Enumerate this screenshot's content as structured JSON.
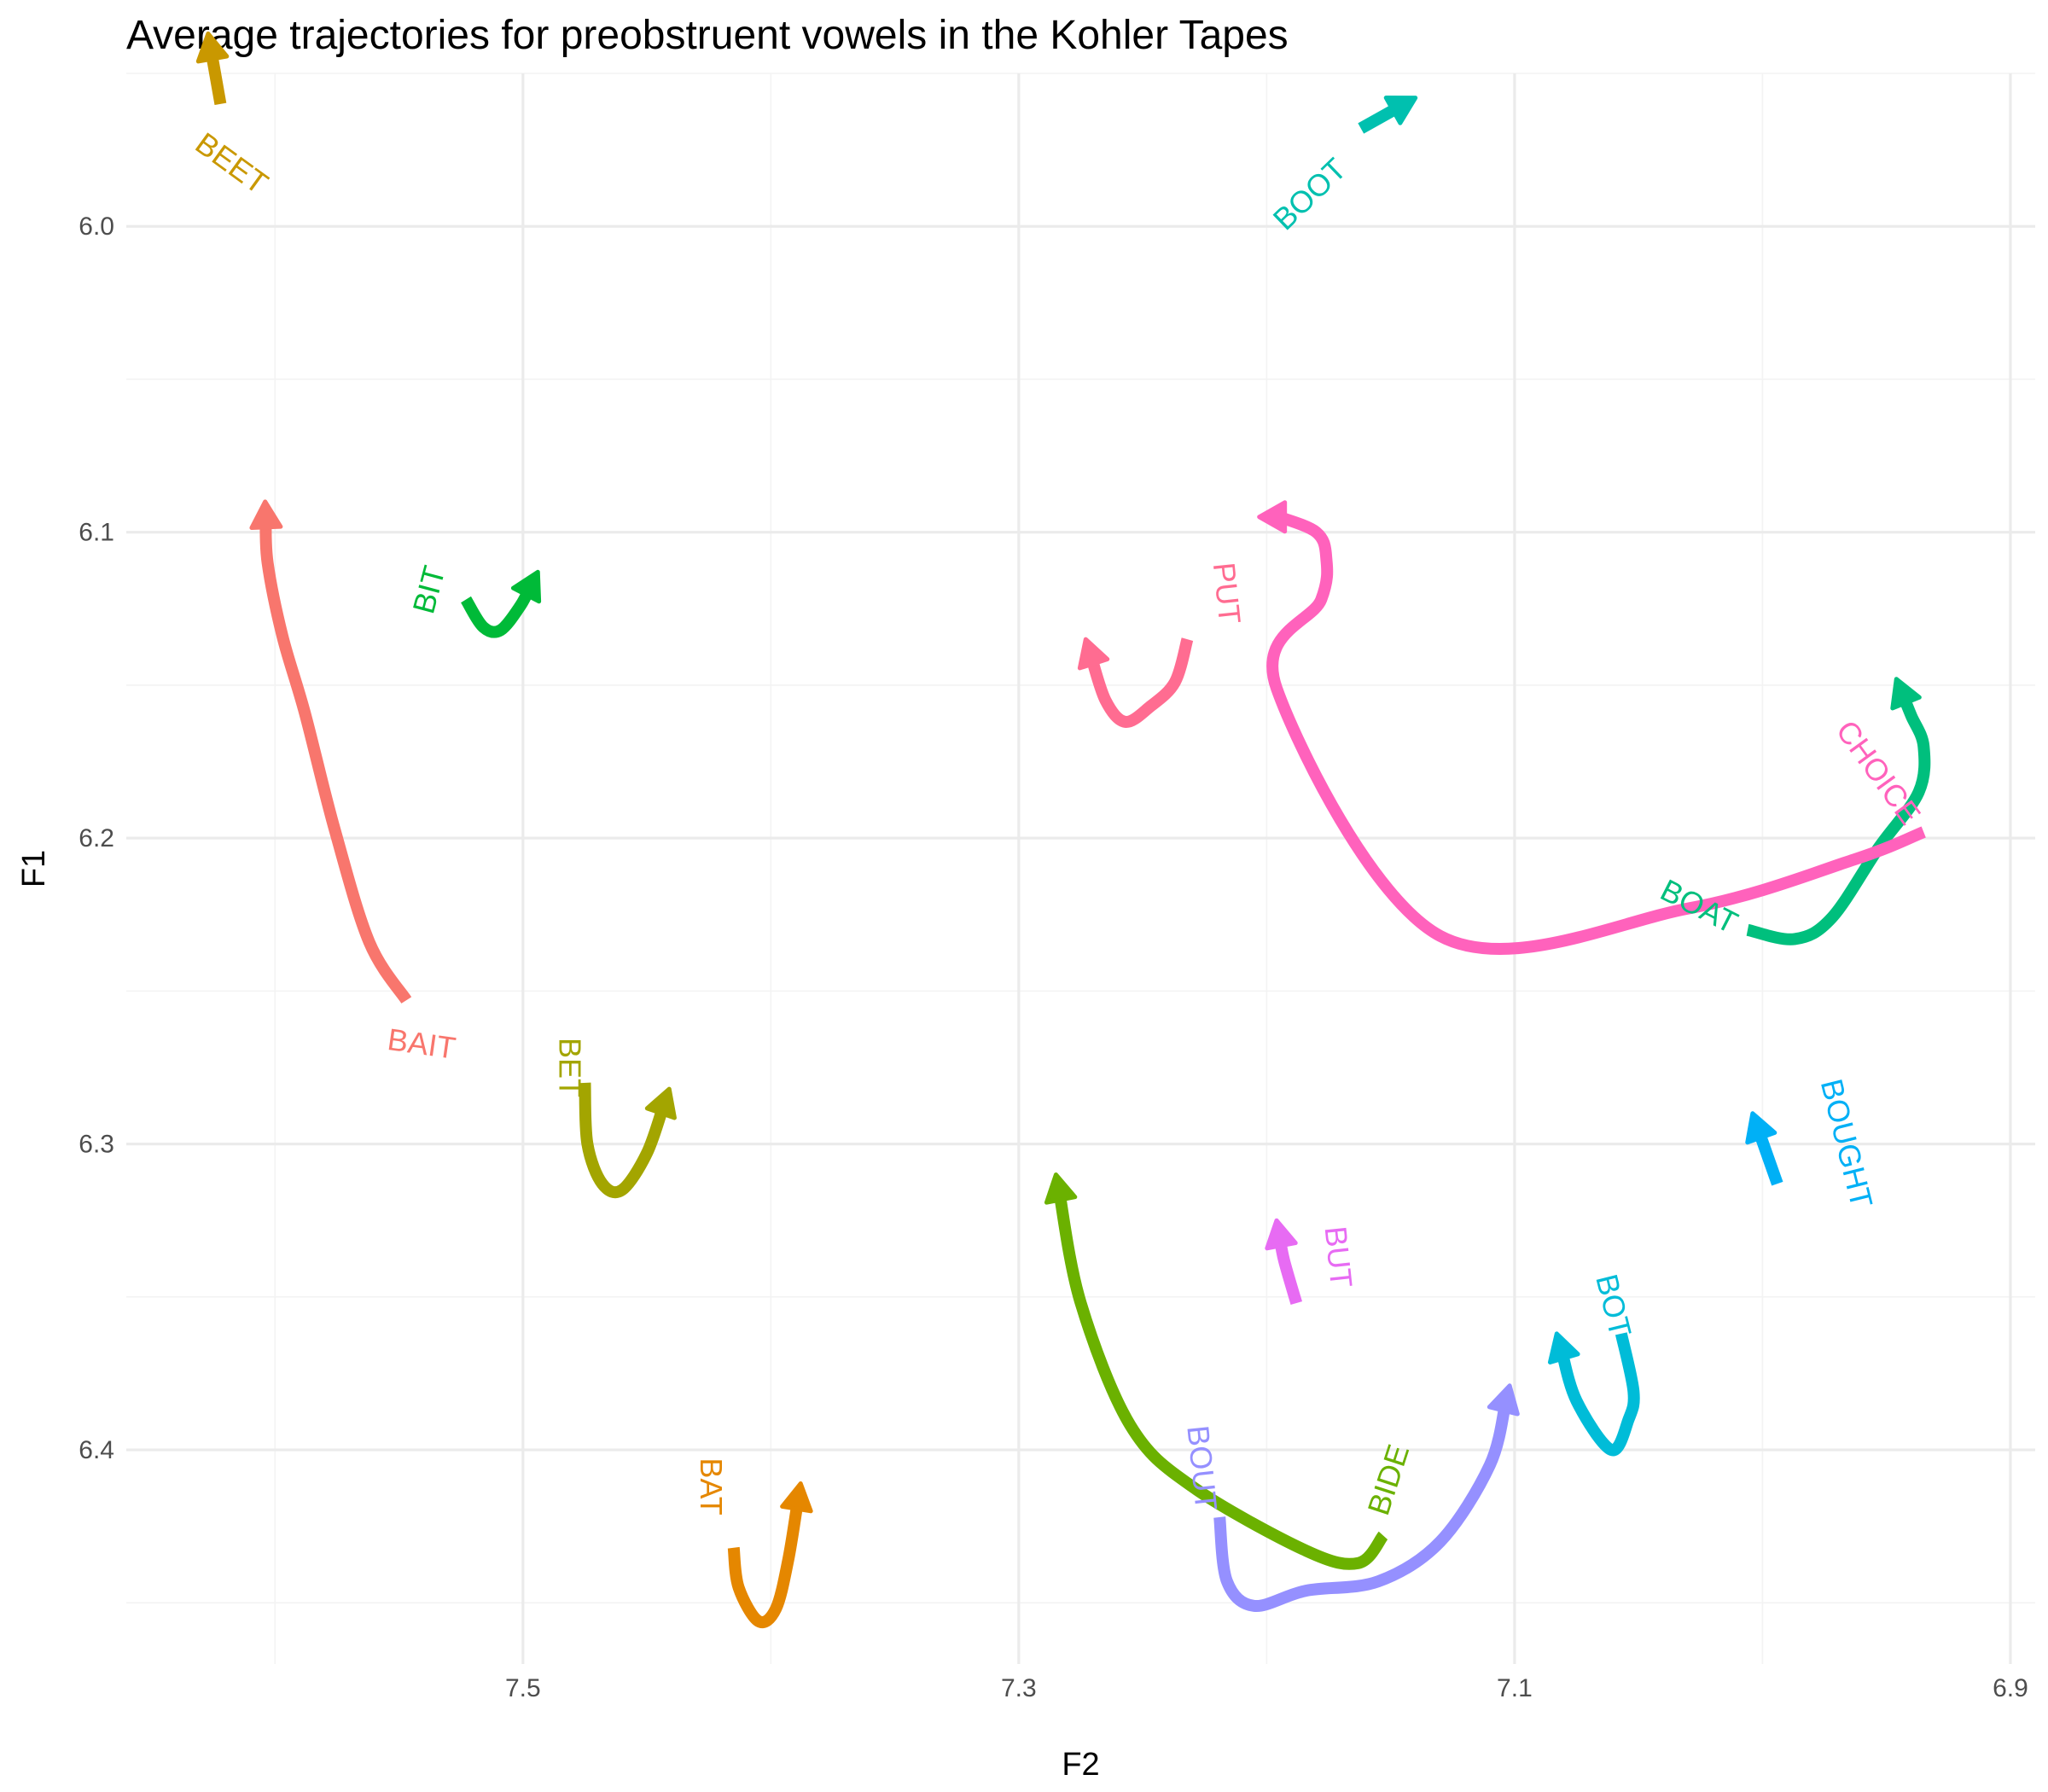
{
  "chart_data": {
    "type": "line",
    "title": "Average trajectories for preobstruent vowels in the Kohler Tapes",
    "xlabel": "F2",
    "ylabel": "F1",
    "x_reversed": true,
    "y_reversed": true,
    "xlim": [
      7.66,
      6.89
    ],
    "ylim": [
      5.95,
      6.47
    ],
    "x_ticks": [
      7.5,
      7.3,
      7.1,
      6.9
    ],
    "x_tick_labels": [
      "7.5",
      "7.3",
      "7.1",
      "6.9"
    ],
    "y_ticks": [
      6.0,
      6.1,
      6.2,
      6.3,
      6.4
    ],
    "y_tick_labels": [
      "6.0",
      "6.1",
      "6.2",
      "6.3",
      "6.4"
    ],
    "grid": true,
    "series": [
      {
        "name": "BAIT",
        "color": "#F8766D",
        "x": [
          7.547,
          7.562,
          7.576,
          7.588,
          7.597,
          7.603,
          7.604
        ],
        "y": [
          6.253,
          6.234,
          6.197,
          6.159,
          6.134,
          6.11,
          6.09
        ]
      },
      {
        "name": "BAT",
        "color": "#E58700",
        "x": [
          7.415,
          7.413,
          7.405,
          7.398,
          7.393,
          7.388
        ],
        "y": [
          6.432,
          6.445,
          6.456,
          6.452,
          6.436,
          6.411
        ]
      },
      {
        "name": "BEET",
        "color": "#C99800",
        "x": [
          7.622,
          7.627
        ],
        "y": [
          5.96,
          5.937
        ]
      },
      {
        "name": "BET",
        "color": "#A3A500",
        "x": [
          7.475,
          7.474,
          7.468,
          7.46,
          7.45,
          7.441
        ],
        "y": [
          6.28,
          6.3,
          6.313,
          6.315,
          6.303,
          6.282
        ]
      },
      {
        "name": "BIDE",
        "color": "#6BB100",
        "x": [
          7.153,
          7.163,
          7.184,
          7.23,
          7.255,
          7.275,
          7.285
        ],
        "y": [
          6.428,
          6.437,
          6.433,
          6.412,
          6.392,
          6.352,
          6.31
        ]
      },
      {
        "name": "BIT",
        "color": "#00BA38",
        "x": [
          7.523,
          7.516,
          7.509,
          7.501,
          7.494
        ],
        "y": [
          6.122,
          6.131,
          6.132,
          6.124,
          6.113
        ]
      },
      {
        "name": "BOAT",
        "color": "#00BF7D",
        "x": [
          7.006,
          6.987,
          6.972,
          6.953,
          6.937,
          6.935,
          6.94,
          6.946
        ],
        "y": [
          6.23,
          6.233,
          6.226,
          6.203,
          6.185,
          6.17,
          6.16,
          6.148
        ]
      },
      {
        "name": "BOOT",
        "color": "#00C0AF",
        "x": [
          7.162,
          7.14
        ],
        "y": [
          5.968,
          5.958
        ]
      },
      {
        "name": "BOT",
        "color": "#00BCD8",
        "x": [
          7.057,
          7.052,
          7.054,
          7.061,
          7.075,
          7.083
        ],
        "y": [
          6.362,
          6.381,
          6.39,
          6.4,
          6.384,
          6.362
        ]
      },
      {
        "name": "BOUGHT",
        "color": "#00B0F6",
        "x": [
          6.994,
          7.004
        ],
        "y": [
          6.313,
          6.29
        ]
      },
      {
        "name": "BOUT",
        "color": "#9590FF",
        "x": [
          7.219,
          7.216,
          7.205,
          7.184,
          7.155,
          7.13,
          7.11,
          7.102
        ],
        "y": [
          6.422,
          6.443,
          6.451,
          6.446,
          6.443,
          6.43,
          6.405,
          6.379
        ]
      },
      {
        "name": "BUT",
        "color": "#E76BF3",
        "x": [
          7.188,
          7.193,
          7.196
        ],
        "y": [
          6.352,
          6.338,
          6.325
        ]
      },
      {
        "name": "CHOICE",
        "color": "#FF62BC",
        "x": [
          6.935,
          6.963,
          7.03,
          7.13,
          7.196,
          7.178,
          7.176,
          7.18,
          7.195,
          7.203
        ],
        "y": [
          6.198,
          6.207,
          6.223,
          6.232,
          6.151,
          6.122,
          6.108,
          6.1,
          6.095,
          6.095
        ]
      },
      {
        "name": "PUT",
        "color": "#FF6C91",
        "x": [
          7.232,
          7.237,
          7.247,
          7.257,
          7.265,
          7.273
        ],
        "y": [
          6.135,
          6.149,
          6.157,
          6.162,
          6.155,
          6.135
        ]
      }
    ],
    "labels": [
      {
        "text": "BAIT",
        "series": "BAIT",
        "x": 7.541,
        "y": 6.268,
        "angle": 8
      },
      {
        "text": "BAT",
        "series": "BAT",
        "x": 7.425,
        "y": 6.412,
        "angle": 90
      },
      {
        "text": "BEET",
        "series": "BEET",
        "x": 7.618,
        "y": 5.98,
        "angle": 36
      },
      {
        "text": "BET",
        "series": "BET",
        "x": 7.482,
        "y": 6.275,
        "angle": 90
      },
      {
        "text": "BIDE",
        "series": "BIDE",
        "x": 7.15,
        "y": 6.41,
        "angle": -72
      },
      {
        "text": "BIT",
        "series": "BIT",
        "x": 7.537,
        "y": 6.119,
        "angle": -75
      },
      {
        "text": "BOAT",
        "series": "BOAT",
        "x": 7.026,
        "y": 6.223,
        "angle": 27
      },
      {
        "text": "BOOT",
        "series": "BOOT",
        "x": 7.182,
        "y": 5.99,
        "angle": -44
      },
      {
        "text": "BOT",
        "series": "BOT",
        "x": 7.061,
        "y": 6.353,
        "angle": 76
      },
      {
        "text": "BOUGHT",
        "series": "BOUGHT",
        "x": 6.967,
        "y": 6.3,
        "angle": 76
      },
      {
        "text": "BOUT",
        "series": "BOUT",
        "x": 7.227,
        "y": 6.406,
        "angle": 84
      },
      {
        "text": "BUT",
        "series": "BUT",
        "x": 7.172,
        "y": 6.337,
        "angle": 84
      },
      {
        "text": "CHOICE",
        "series": "CHOICE",
        "x": 6.954,
        "y": 6.179,
        "angle": 54
      },
      {
        "text": "PUT",
        "series": "PUT",
        "x": 7.217,
        "y": 6.12,
        "angle": 84
      }
    ]
  }
}
